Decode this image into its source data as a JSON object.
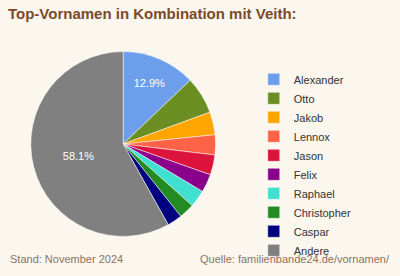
{
  "chart_data": {
    "type": "pie",
    "title": "Top-Vornamen in Kombination mit Veith:",
    "categories": [
      "Alexander",
      "Otto",
      "Jakob",
      "Lennox",
      "Jason",
      "Felix",
      "Raphael",
      "Christopher",
      "Caspar",
      "Andere"
    ],
    "values": [
      12.9,
      6.5,
      4.0,
      3.5,
      3.5,
      3.2,
      3.0,
      2.7,
      2.6,
      58.1
    ],
    "value_labels": [
      "12.9%",
      null,
      null,
      null,
      null,
      null,
      null,
      null,
      null,
      "58.1%"
    ],
    "colors": [
      "#6d9eeb",
      "#6b8e23",
      "#ffa500",
      "#ff6347",
      "#dc143c",
      "#8b008b",
      "#40e0d0",
      "#228b22",
      "#000080",
      "#808080"
    ],
    "data_labels": true,
    "legend": "right",
    "annotations": [
      "Stand: November 2024",
      "Quelle: familienbande24.de/vornamen/"
    ]
  }
}
